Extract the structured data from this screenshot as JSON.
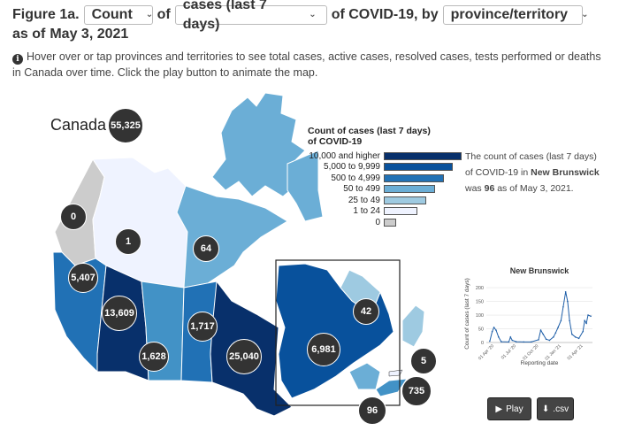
{
  "header": {
    "figure_label": "Figure 1a.",
    "metric_select": "Count",
    "of_text": "of",
    "measure_select": "cases (last 7 days)",
    "of_covid_text": "of COVID-19, by",
    "geo_select": "province/territory",
    "as_of_text": "as of",
    "date_text": "May 3, 2021",
    "instruction": "Hover over or tap provinces and territories to see total cases, active cases, resolved cases, tests performed or deaths in Canada over time. Click the play button to animate the map."
  },
  "map": {
    "canada_label": "Canada",
    "canada_total": "55,325",
    "regions": [
      {
        "name": "Yukon",
        "value": "0",
        "color": "#cccccc"
      },
      {
        "name": "Northwest Territories",
        "value": "1",
        "color": "#eff3ff"
      },
      {
        "name": "Nunavut",
        "value": "64",
        "color": "#6baed6"
      },
      {
        "name": "British Columbia",
        "value": "5,407",
        "color": "#2171b5"
      },
      {
        "name": "Alberta",
        "value": "13,609",
        "color": "#08306b"
      },
      {
        "name": "Saskatchewan",
        "value": "1,628",
        "color": "#4292c6"
      },
      {
        "name": "Manitoba",
        "value": "1,717",
        "color": "#2171b5"
      },
      {
        "name": "Ontario",
        "value": "25,040",
        "color": "#08306b"
      },
      {
        "name": "Quebec",
        "value": "6,981",
        "color": "#08519c"
      },
      {
        "name": "Newfoundland and Labrador",
        "value": "42",
        "color": "#9ecae1"
      },
      {
        "name": "Prince Edward Island",
        "value": "5",
        "color": "#eff3ff"
      },
      {
        "name": "Nova Scotia",
        "value": "735",
        "color": "#4292c6"
      },
      {
        "name": "New Brunswick",
        "value": "96",
        "color": "#6baed6"
      }
    ]
  },
  "legend": {
    "title_line1": "Count of cases (last 7 days)",
    "title_line2": "of COVID-19",
    "items": [
      {
        "label": "10,000 and higher",
        "color": "#08306b"
      },
      {
        "label": "5,000 to 9,999",
        "color": "#08519c"
      },
      {
        "label": "500 to 4,999",
        "color": "#2171b5"
      },
      {
        "label": "50 to 499",
        "color": "#6baed6"
      },
      {
        "label": "25 to 49",
        "color": "#9ecae1"
      },
      {
        "label": "1 to 24",
        "color": "#eff3ff"
      },
      {
        "label": "0",
        "color": "#cccccc"
      }
    ]
  },
  "detail": {
    "text_before": "The count of cases (last 7 days) of COVID-19 in",
    "region": "New Brunswick",
    "text_mid": "was",
    "value": "96",
    "text_after": "as of May 3, 2021."
  },
  "chart_data": {
    "type": "line",
    "title": "New Brunswick",
    "xlabel": "Reporting date",
    "ylabel": "Count of cases (last 7 days)",
    "yticks": [
      0,
      50,
      100,
      150,
      200
    ],
    "ylim": [
      0,
      210
    ],
    "xticks": [
      "01 Apr '20",
      "01 Jul '20",
      "01 Oct '20",
      "01 Jan '21",
      "01 Apr '21"
    ],
    "series": [
      {
        "x": [
          "2020-03-15",
          "2020-03-25",
          "2020-04-01",
          "2020-04-10",
          "2020-04-20",
          "2020-05-01",
          "2020-06-01",
          "2020-06-08",
          "2020-06-15",
          "2020-07-01",
          "2020-08-01",
          "2020-09-01",
          "2020-10-01",
          "2020-10-10",
          "2020-10-20",
          "2020-11-01",
          "2020-11-15",
          "2020-12-01",
          "2020-12-10",
          "2020-12-20",
          "2021-01-01",
          "2021-01-10",
          "2021-01-20",
          "2021-01-28",
          "2021-02-05",
          "2021-02-15",
          "2021-03-01",
          "2021-03-15",
          "2021-04-01",
          "2021-04-08",
          "2021-04-15",
          "2021-04-22",
          "2021-05-03"
        ],
        "y": [
          5,
          40,
          55,
          45,
          20,
          3,
          2,
          20,
          8,
          3,
          2,
          2,
          10,
          45,
          30,
          12,
          8,
          20,
          35,
          55,
          80,
          130,
          185,
          150,
          80,
          30,
          20,
          15,
          40,
          80,
          70,
          100,
          96
        ]
      }
    ]
  },
  "buttons": {
    "play_label": "Play",
    "csv_label": ".csv"
  }
}
